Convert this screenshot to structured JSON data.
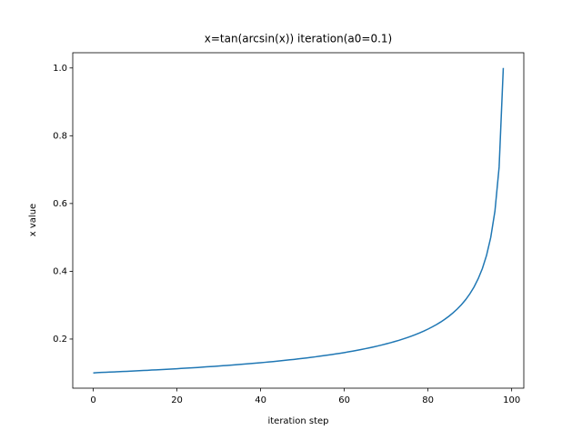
{
  "chart_data": {
    "type": "line",
    "title": "x=tan(arcsin(x)) iteration(a0=0.1)",
    "xlabel": "iteration step",
    "ylabel": "x value",
    "x": [
      0,
      1,
      2,
      3,
      4,
      5,
      6,
      7,
      8,
      9,
      10,
      11,
      12,
      13,
      14,
      15,
      16,
      17,
      18,
      19,
      20,
      21,
      22,
      23,
      24,
      25,
      26,
      27,
      28,
      29,
      30,
      31,
      32,
      33,
      34,
      35,
      36,
      37,
      38,
      39,
      40,
      41,
      42,
      43,
      44,
      45,
      46,
      47,
      48,
      49,
      50,
      51,
      52,
      53,
      54,
      55,
      56,
      57,
      58,
      59,
      60,
      61,
      62,
      63,
      64,
      65,
      66,
      67,
      68,
      69,
      70,
      71,
      72,
      73,
      74,
      75,
      76,
      77,
      78,
      79,
      80,
      81,
      82,
      83,
      84,
      85,
      86,
      87,
      88,
      89,
      90,
      91,
      92,
      93,
      94,
      95,
      96,
      97,
      98
    ],
    "series": [
      {
        "color": "#1f77b4",
        "values": [
          0.1,
          0.101,
          0.1015,
          0.1021,
          0.1026,
          0.1031,
          0.1037,
          0.1043,
          0.1048,
          0.1054,
          0.106,
          0.1066,
          0.1072,
          0.1078,
          0.1085,
          0.1091,
          0.1098,
          0.1104,
          0.1111,
          0.1118,
          0.1125,
          0.1132,
          0.114,
          0.1147,
          0.1155,
          0.1162,
          0.117,
          0.1179,
          0.1187,
          0.1195,
          0.1204,
          0.1213,
          0.1222,
          0.1231,
          0.124,
          0.125,
          0.126,
          0.127,
          0.128,
          0.1291,
          0.1302,
          0.1313,
          0.1325,
          0.1336,
          0.1348,
          0.1361,
          0.1374,
          0.1387,
          0.14,
          0.1414,
          0.1429,
          0.1443,
          0.1459,
          0.1474,
          0.1491,
          0.1508,
          0.1525,
          0.1543,
          0.1562,
          0.1581,
          0.1601,
          0.1622,
          0.1644,
          0.1667,
          0.169,
          0.1715,
          0.1741,
          0.1768,
          0.1796,
          0.1826,
          0.1857,
          0.189,
          0.1925,
          0.1961,
          0.2,
          0.2041,
          0.2085,
          0.2132,
          0.2182,
          0.2236,
          0.2294,
          0.2357,
          0.2425,
          0.25,
          0.2582,
          0.2673,
          0.2774,
          0.2887,
          0.3015,
          0.3162,
          0.3333,
          0.3536,
          0.378,
          0.4082,
          0.4472,
          0.5,
          0.5774,
          0.7071,
          1.0
        ]
      }
    ],
    "xlim": [
      -4.9,
      102.9
    ],
    "xticks": [
      0,
      20,
      40,
      60,
      80,
      100
    ],
    "ylim": [
      0.055,
      1.045
    ],
    "yticks": [
      0.2,
      0.4,
      0.6,
      0.8,
      {
        "value": 1.0,
        "label": "1.0"
      }
    ]
  }
}
